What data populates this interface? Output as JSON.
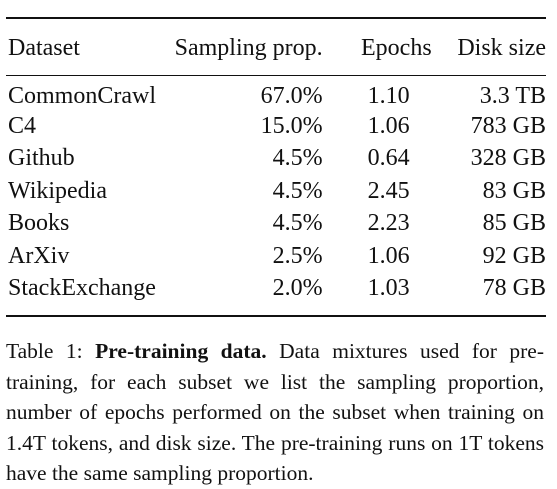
{
  "table": {
    "headers": {
      "dataset": "Dataset",
      "sampling": "Sampling prop.",
      "epochs": "Epochs",
      "disk": "Disk size"
    },
    "rows": [
      {
        "dataset": "CommonCrawl",
        "sampling": "67.0%",
        "epochs": "1.10",
        "disk": "3.3 TB"
      },
      {
        "dataset": "C4",
        "sampling": "15.0%",
        "epochs": "1.06",
        "disk": "783 GB"
      },
      {
        "dataset": "Github",
        "sampling": "4.5%",
        "epochs": "0.64",
        "disk": "328 GB"
      },
      {
        "dataset": "Wikipedia",
        "sampling": "4.5%",
        "epochs": "2.45",
        "disk": "83 GB"
      },
      {
        "dataset": "Books",
        "sampling": "4.5%",
        "epochs": "2.23",
        "disk": "85 GB"
      },
      {
        "dataset": "ArXiv",
        "sampling": "2.5%",
        "epochs": "1.06",
        "disk": "92 GB"
      },
      {
        "dataset": "StackExchange",
        "sampling": "2.0%",
        "epochs": "1.03",
        "disk": "78 GB"
      }
    ]
  },
  "caption": {
    "label": "Table 1:",
    "title": "Pre-training data.",
    "text": "Data mixtures used for pre-training, for each subset we list the sampling proportion, number of epochs performed on the subset when training on 1.4T tokens, and disk size. The pre-training runs on 1T tokens have the same sampling proportion."
  }
}
